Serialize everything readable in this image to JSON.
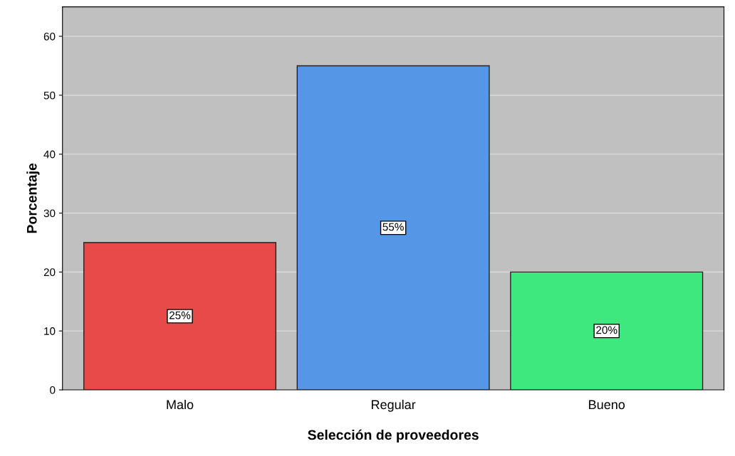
{
  "chart_data": {
    "type": "bar",
    "xlabel": "Selección de proveedores",
    "ylabel": "Porcentaje",
    "categories": [
      "Malo",
      "Regular",
      "Bueno"
    ],
    "values": [
      25,
      55,
      20
    ],
    "colors": [
      "#e84a4a",
      "#5596e6",
      "#3ee87f"
    ],
    "value_labels": [
      "25%",
      "55%",
      "20%"
    ],
    "ylim": [
      0,
      65
    ],
    "yticks": [
      0,
      10,
      20,
      30,
      40,
      50,
      60
    ],
    "grid": "y"
  }
}
